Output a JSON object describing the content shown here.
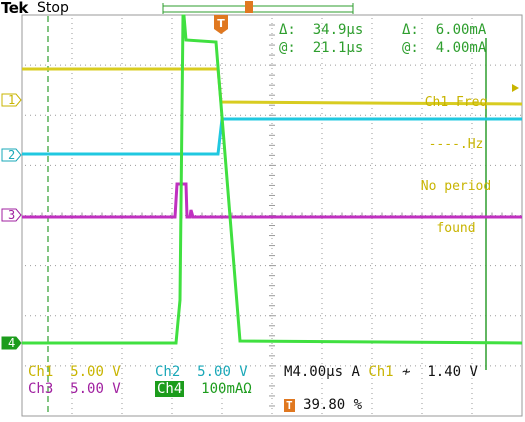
{
  "header": {
    "brand": "Tek",
    "acquisition_state": "Stop"
  },
  "cursor_readout": {
    "time_delta": "Δ:  34.9µs",
    "time_at": "@:  21.1µs",
    "current_delta": "Δ:  6.00mA",
    "current_at": "@:  4.00mA"
  },
  "measurement_overlay": {
    "label": "Ch1 Freq",
    "value": "----.Hz",
    "note_line1": "No period",
    "note_line2": "found"
  },
  "channels": [
    {
      "id": "1",
      "label": "Ch1",
      "scale": "5.00 V",
      "color": "#c8b400"
    },
    {
      "id": "2",
      "label": "Ch2",
      "scale": "5.00 V",
      "color": "#1aa8b8"
    },
    {
      "id": "3",
      "label": "Ch3",
      "scale": "5.00 V",
      "color": "#a020a0"
    },
    {
      "id": "4",
      "label": "Ch4",
      "scale": "100mAΩ",
      "color": "#1c9c1c"
    }
  ],
  "timebase": {
    "label": "M",
    "value": "4.00µs",
    "trigger_mode": "A",
    "trigger_source": "Ch1",
    "trigger_level": "1.40 V",
    "trigger_position": "39.80 %"
  },
  "trigger_marker": "T",
  "colors": {
    "graticule": "#9a9a9a",
    "cursor": "#2e9e2e",
    "trigger": "#e07820"
  }
}
